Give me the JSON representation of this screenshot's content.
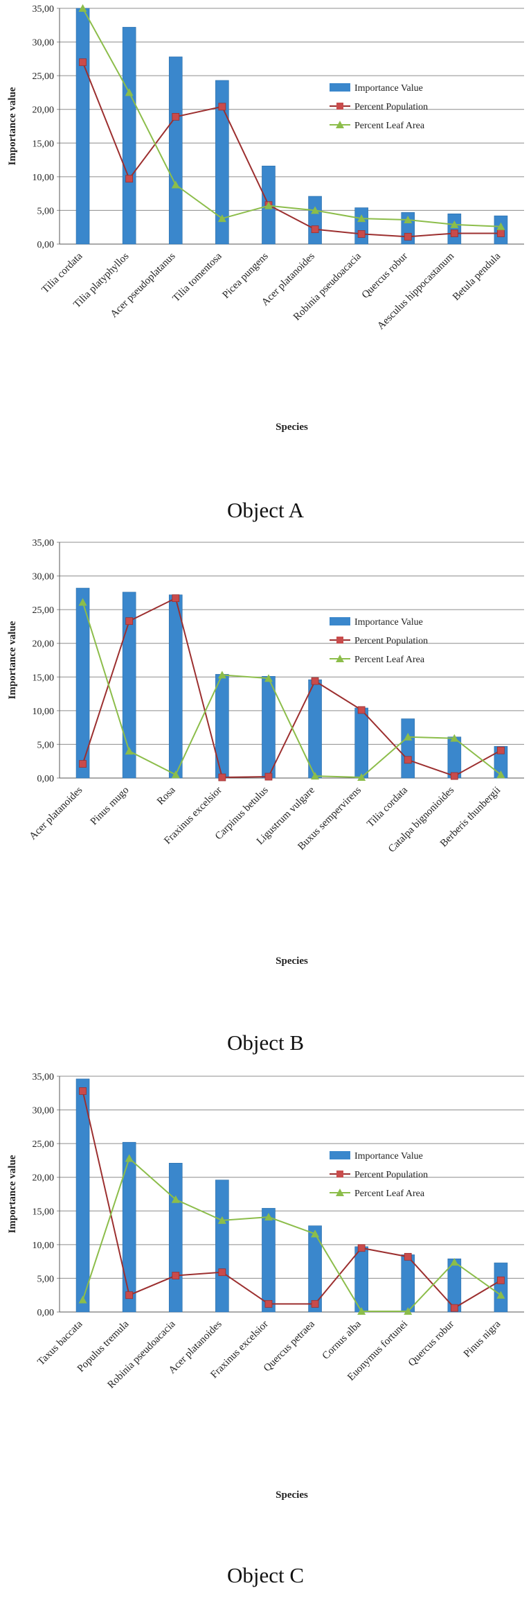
{
  "colors": {
    "bar": "#3a87cc",
    "bar_edge": "#2d6ea8",
    "population": "#9c2f2f",
    "population_marker": "#c94b4b",
    "leaf": "#8cbd4a",
    "grid": "#8c8c8c"
  },
  "chart_data": [
    {
      "type": "bar",
      "caption": "Object A",
      "xlabel": "Species",
      "ylabel": "Importance value",
      "ylim": [
        0,
        35
      ],
      "yticks": [
        "0,00",
        "5,00",
        "10,00",
        "15,00",
        "20,00",
        "25,00",
        "30,00",
        "35,00"
      ],
      "grid": true,
      "legend_position": "top-right",
      "categories": [
        "Tilia cordata",
        "Tilia platyphyllos",
        "Acer pseudoplatanus",
        "Tilia tomentosa",
        "Picea pungens",
        "Acer platanoides",
        "Robinia pseudoacacia",
        "Quercus robur",
        "Aesculus hippocastanum",
        "Betula pendula"
      ],
      "series": [
        {
          "name": "Importance Value",
          "kind": "bar",
          "values": [
            35.0,
            32.2,
            27.8,
            24.3,
            11.6,
            7.1,
            5.4,
            4.7,
            4.5,
            4.2
          ]
        },
        {
          "name": "Percent Population",
          "kind": "line",
          "marker": "square",
          "values": [
            27.0,
            9.7,
            18.9,
            20.4,
            5.8,
            2.2,
            1.5,
            1.1,
            1.6,
            1.6
          ]
        },
        {
          "name": "Percent Leaf Area",
          "kind": "line",
          "marker": "triangle",
          "values": [
            35.0,
            22.5,
            8.8,
            3.8,
            5.7,
            5.0,
            3.8,
            3.6,
            2.9,
            2.6
          ]
        }
      ]
    },
    {
      "type": "bar",
      "caption": "Object B",
      "xlabel": "Species",
      "ylabel": "Importance value",
      "ylim": [
        0,
        35
      ],
      "yticks": [
        "0,00",
        "5,00",
        "10,00",
        "15,00",
        "20,00",
        "25,00",
        "30,00",
        "35,00"
      ],
      "grid": true,
      "legend_position": "top-right",
      "categories": [
        "Acer platanoides",
        "Pinus mugo",
        "Rosa",
        "Fraxinus excelsior",
        "Carpinus betulus",
        "Ligustrum vulgare",
        "Buxus sempervirens",
        "Tilia cordata",
        "Catalpa bignonioides",
        "Berberis thunbergii"
      ],
      "series": [
        {
          "name": "Importance Value",
          "kind": "bar",
          "values": [
            28.2,
            27.6,
            27.2,
            15.4,
            15.1,
            14.6,
            10.4,
            8.8,
            6.1,
            4.7
          ]
        },
        {
          "name": "Percent Population",
          "kind": "line",
          "marker": "square",
          "values": [
            2.1,
            23.3,
            26.7,
            0.1,
            0.2,
            14.4,
            10.1,
            2.7,
            0.3,
            4.1
          ]
        },
        {
          "name": "Percent Leaf Area",
          "kind": "line",
          "marker": "triangle",
          "values": [
            26.1,
            4.0,
            0.5,
            15.3,
            14.8,
            0.3,
            0.1,
            6.1,
            5.9,
            0.5
          ]
        }
      ]
    },
    {
      "type": "bar",
      "caption": "Object C",
      "xlabel": "Species",
      "ylabel": "Importance value",
      "ylim": [
        0,
        35
      ],
      "yticks": [
        "0,00",
        "5,00",
        "10,00",
        "15,00",
        "20,00",
        "25,00",
        "30,00",
        "35,00"
      ],
      "grid": true,
      "legend_position": "top-right",
      "categories": [
        "Taxus baccata",
        "Populus tremula",
        "Robinia pseudoacacia",
        "Acer platanoides",
        "Fraxinus excelsior",
        "Quercus petraea",
        "Cornus alba",
        "Euonymus fortunei",
        "Quercus robur",
        "Pinus nigra"
      ],
      "series": [
        {
          "name": "Importance Value",
          "kind": "bar",
          "values": [
            34.6,
            25.2,
            22.1,
            19.6,
            15.4,
            12.8,
            9.7,
            8.5,
            7.9,
            7.3
          ]
        },
        {
          "name": "Percent Population",
          "kind": "line",
          "marker": "square",
          "values": [
            32.8,
            2.5,
            5.4,
            5.9,
            1.2,
            1.2,
            9.5,
            8.2,
            0.6,
            4.7
          ]
        },
        {
          "name": "Percent Leaf Area",
          "kind": "line",
          "marker": "triangle",
          "values": [
            1.8,
            22.8,
            16.7,
            13.6,
            14.1,
            11.6,
            0.1,
            0.1,
            7.4,
            2.5
          ]
        }
      ]
    }
  ]
}
